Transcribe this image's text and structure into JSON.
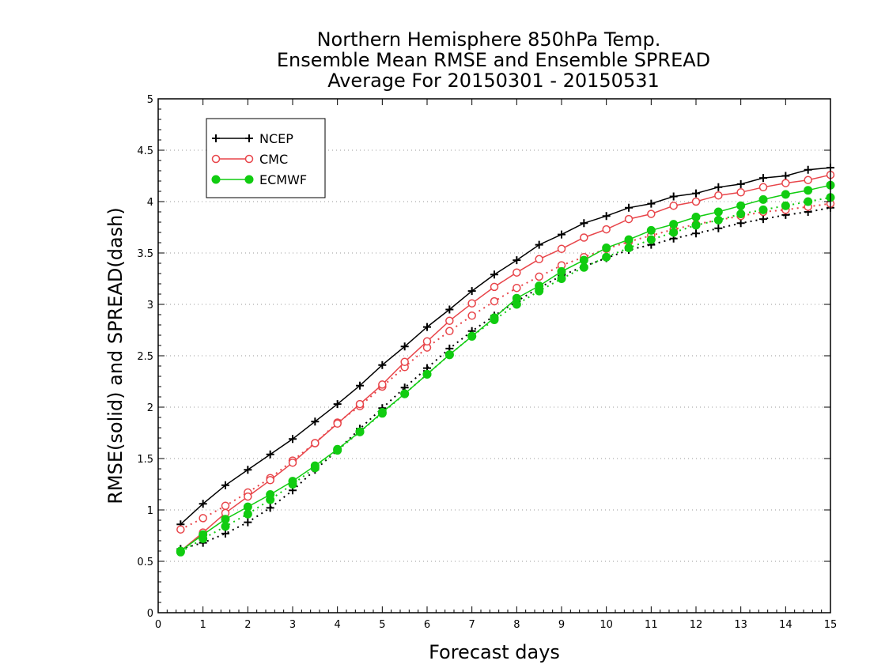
{
  "chart_data": {
    "type": "line",
    "title": [
      "Northern Hemisphere 850hPa Temp.",
      "Ensemble Mean RMSE and Ensemble SPREAD",
      "Average For 20150301 - 20150531"
    ],
    "xlabel": "Forecast days",
    "ylabel": "RMSE(solid) and SPREAD(dash)",
    "xlim": [
      0,
      15
    ],
    "ylim": [
      0,
      5
    ],
    "xticks": [
      0,
      1,
      2,
      3,
      4,
      5,
      6,
      7,
      8,
      9,
      10,
      11,
      12,
      13,
      14,
      15
    ],
    "yticks": [
      0,
      0.5,
      1,
      1.5,
      2,
      2.5,
      3,
      3.5,
      4,
      4.5,
      5
    ],
    "ytick_labels": [
      "0",
      "0.5",
      "1",
      "1.5",
      "2",
      "2.5",
      "3",
      "3.5",
      "4",
      "4.5",
      "5"
    ],
    "grid": "horizontal dotted",
    "legend_position": "top-left",
    "x": [
      0.5,
      1,
      1.5,
      2,
      2.5,
      3,
      3.5,
      4,
      4.5,
      5,
      5.5,
      6,
      6.5,
      7,
      7.5,
      8,
      8.5,
      9,
      9.5,
      10,
      10.5,
      11,
      11.5,
      12,
      12.5,
      13,
      13.5,
      14,
      14.5,
      15
    ],
    "series": [
      {
        "name": "NCEP",
        "color": "#000000",
        "marker": "plus",
        "rmse": [
          0.86,
          1.06,
          1.24,
          1.39,
          1.54,
          1.69,
          1.86,
          2.03,
          2.21,
          2.41,
          2.59,
          2.78,
          2.95,
          3.13,
          3.29,
          3.43,
          3.58,
          3.68,
          3.79,
          3.86,
          3.94,
          3.98,
          4.05,
          4.08,
          4.14,
          4.17,
          4.23,
          4.25,
          4.31,
          4.33
        ],
        "spread": [
          0.62,
          0.68,
          0.77,
          0.88,
          1.02,
          1.19,
          1.39,
          1.58,
          1.79,
          1.99,
          2.19,
          2.38,
          2.57,
          2.74,
          2.89,
          3.03,
          3.16,
          3.28,
          3.37,
          3.45,
          3.53,
          3.58,
          3.64,
          3.69,
          3.74,
          3.79,
          3.83,
          3.87,
          3.9,
          3.94
        ]
      },
      {
        "name": "CMC",
        "color": "#e8454a",
        "marker": "open-circle",
        "rmse": [
          0.6,
          0.78,
          0.97,
          1.13,
          1.29,
          1.46,
          1.65,
          1.84,
          2.03,
          2.22,
          2.44,
          2.64,
          2.84,
          3.01,
          3.17,
          3.31,
          3.44,
          3.54,
          3.65,
          3.73,
          3.83,
          3.88,
          3.96,
          4.0,
          4.06,
          4.09,
          4.14,
          4.18,
          4.21,
          4.26
        ],
        "spread": [
          0.81,
          0.92,
          1.04,
          1.17,
          1.31,
          1.48,
          1.65,
          1.85,
          2.01,
          2.2,
          2.39,
          2.58,
          2.74,
          2.89,
          3.03,
          3.16,
          3.27,
          3.38,
          3.46,
          3.54,
          3.61,
          3.67,
          3.73,
          3.78,
          3.82,
          3.86,
          3.9,
          3.92,
          3.95,
          3.98
        ]
      },
      {
        "name": "ECMWF",
        "color": "#11cc11",
        "marker": "filled-circle",
        "rmse": [
          0.6,
          0.76,
          0.91,
          1.03,
          1.15,
          1.28,
          1.43,
          1.59,
          1.76,
          1.95,
          2.13,
          2.32,
          2.51,
          2.69,
          2.87,
          3.06,
          3.18,
          3.32,
          3.43,
          3.55,
          3.63,
          3.72,
          3.78,
          3.85,
          3.9,
          3.96,
          4.02,
          4.07,
          4.11,
          4.16
        ],
        "spread": [
          0.59,
          0.72,
          0.84,
          0.96,
          1.1,
          1.25,
          1.41,
          1.58,
          1.76,
          1.94,
          2.13,
          2.32,
          2.51,
          2.69,
          2.85,
          3.0,
          3.13,
          3.25,
          3.36,
          3.46,
          3.55,
          3.63,
          3.7,
          3.77,
          3.82,
          3.88,
          3.92,
          3.96,
          4.0,
          4.04
        ]
      }
    ]
  }
}
